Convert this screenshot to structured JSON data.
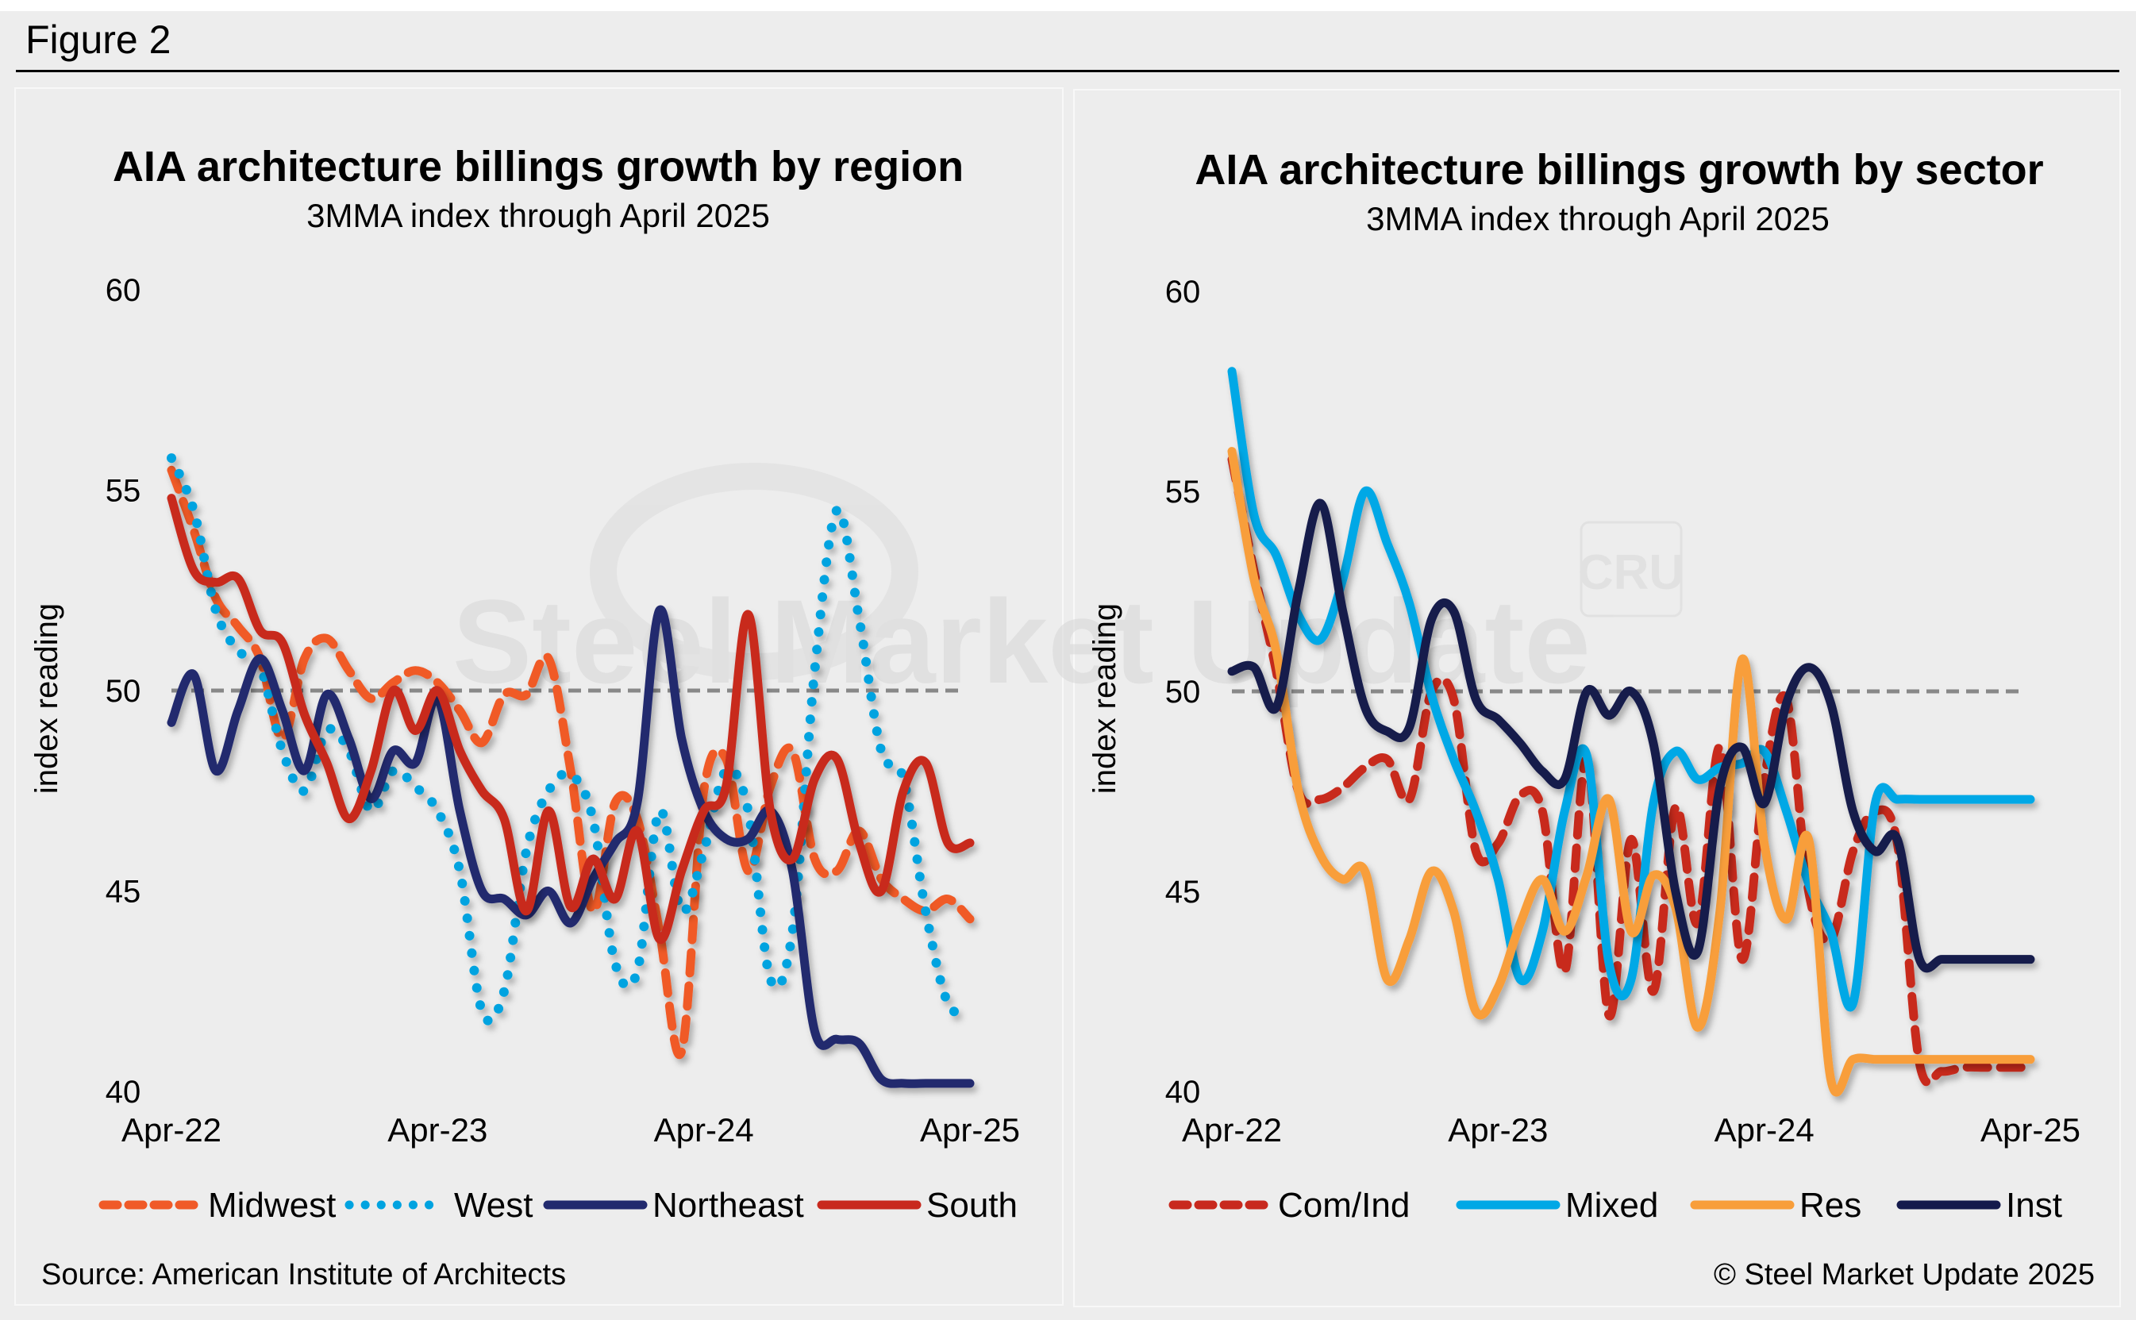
{
  "figure": {
    "title": "Figure 2",
    "source": "Source: American Institute of Architects",
    "copyright": "© Steel Market Update 2025",
    "watermark": "Steel Market Update",
    "watermark_logo": "CRU"
  },
  "colors": {
    "background": "#ededed",
    "reference_line": "#888888",
    "midwest": "#f05a28",
    "west": "#00a3e0",
    "northeast": "#222a6e",
    "south": "#c8291e",
    "com_ind": "#c8291e",
    "mixed": "#00a8e6",
    "res": "#f89e3a",
    "inst": "#141a4c"
  },
  "chart_data": [
    {
      "type": "line",
      "title": "AIA architecture billings growth by region",
      "subtitle": "3MMA index through April 2025",
      "xlabel": "",
      "ylabel": "index reading",
      "ylim": [
        40,
        60
      ],
      "yticks": [
        "60",
        "55",
        "50",
        "45",
        "40"
      ],
      "xtick_labels": [
        "Apr-22",
        "Apr-23",
        "Apr-24",
        "Apr-25"
      ],
      "reference_line": 50,
      "grid": false,
      "legend_position": "bottom",
      "x": [
        "Apr-22",
        "May-22",
        "Jun-22",
        "Jul-22",
        "Aug-22",
        "Sep-22",
        "Oct-22",
        "Nov-22",
        "Dec-22",
        "Jan-23",
        "Feb-23",
        "Mar-23",
        "Apr-23",
        "May-23",
        "Jun-23",
        "Jul-23",
        "Aug-23",
        "Sep-23",
        "Oct-23",
        "Nov-23",
        "Dec-23",
        "Jan-24",
        "Feb-24",
        "Mar-24",
        "Apr-24",
        "May-24",
        "Jun-24",
        "Jul-24",
        "Aug-24",
        "Sep-24",
        "Oct-24",
        "Nov-24",
        "Dec-24",
        "Jan-25",
        "Feb-25",
        "Mar-25",
        "Apr-25"
      ],
      "series": [
        {
          "name": "Midwest",
          "style": "dashed",
          "color_key": "midwest",
          "values": [
            55.5,
            54.0,
            52.3,
            51.6,
            50.8,
            48.8,
            50.8,
            51.3,
            50.5,
            49.8,
            50.2,
            50.5,
            50.2,
            49.5,
            48.7,
            49.9,
            49.9,
            50.8,
            48.0,
            44.5,
            47.2,
            46.8,
            44.0,
            41.0,
            47.5,
            48.3,
            45.5,
            47.6,
            48.5,
            45.8,
            45.5,
            46.5,
            45.3,
            44.8,
            44.5,
            44.8,
            44.3
          ]
        },
        {
          "name": "West",
          "style": "dotted",
          "color_key": "west",
          "values": [
            55.8,
            54.5,
            52.0,
            51.0,
            50.6,
            48.5,
            47.5,
            49.0,
            48.5,
            47.0,
            48.0,
            47.6,
            47.0,
            45.5,
            42.0,
            42.5,
            46.0,
            47.5,
            47.9,
            46.8,
            43.2,
            43.0,
            47.0,
            44.5,
            46.0,
            48.0,
            47.0,
            42.8,
            44.0,
            50.5,
            54.5,
            51.8,
            48.5,
            47.8,
            44.5,
            42.2,
            42.0
          ]
        },
        {
          "name": "Northeast",
          "style": "solid",
          "color_key": "northeast",
          "values": [
            49.2,
            50.4,
            48.0,
            49.5,
            50.8,
            49.5,
            48.0,
            49.9,
            48.8,
            47.3,
            48.5,
            48.2,
            49.8,
            47.0,
            45.0,
            44.8,
            44.4,
            45.0,
            44.2,
            45.3,
            46.2,
            47.2,
            52.0,
            48.8,
            47.0,
            46.3,
            46.3,
            47.0,
            45.5,
            41.5,
            41.3,
            41.2,
            40.3,
            40.2,
            40.2,
            40.2,
            40.2
          ]
        },
        {
          "name": "South",
          "style": "solid",
          "color_key": "south",
          "values": [
            54.8,
            53.0,
            52.7,
            52.8,
            51.5,
            51.2,
            49.4,
            48.2,
            46.8,
            48.0,
            50.0,
            49.0,
            50.0,
            48.5,
            47.5,
            46.8,
            44.5,
            47.0,
            44.6,
            45.8,
            44.8,
            46.5,
            43.8,
            45.5,
            47.0,
            47.6,
            51.9,
            47.0,
            45.8,
            47.8,
            48.3,
            46.2,
            45.0,
            47.5,
            48.2,
            46.2,
            46.2
          ]
        }
      ]
    },
    {
      "type": "line",
      "title": "AIA architecture billings growth by sector",
      "subtitle": "3MMA index through April 2025",
      "xlabel": "",
      "ylabel": "index reading",
      "ylim": [
        40,
        60
      ],
      "yticks": [
        "60",
        "55",
        "50",
        "45",
        "40"
      ],
      "xtick_labels": [
        "Apr-22",
        "Apr-23",
        "Apr-24",
        "Apr-25"
      ],
      "reference_line": 50,
      "grid": false,
      "legend_position": "bottom",
      "x": [
        "Apr-22",
        "May-22",
        "Jun-22",
        "Jul-22",
        "Aug-22",
        "Sep-22",
        "Oct-22",
        "Nov-22",
        "Dec-22",
        "Jan-23",
        "Feb-23",
        "Mar-23",
        "Apr-23",
        "May-23",
        "Jun-23",
        "Jul-23",
        "Aug-23",
        "Sep-23",
        "Oct-23",
        "Nov-23",
        "Dec-23",
        "Jan-24",
        "Feb-24",
        "Mar-24",
        "Apr-24",
        "May-24",
        "Jun-24",
        "Jul-24",
        "Aug-24",
        "Sep-24",
        "Oct-24",
        "Nov-24",
        "Dec-24",
        "Jan-25",
        "Feb-25",
        "Mar-25",
        "Apr-25"
      ],
      "series": [
        {
          "name": "Com/Ind",
          "style": "dashed",
          "color_key": "com_ind",
          "values": [
            55.8,
            53.0,
            50.5,
            47.5,
            47.3,
            47.6,
            48.1,
            48.3,
            47.3,
            50.0,
            49.8,
            46.0,
            46.2,
            47.4,
            47.0,
            43.0,
            48.3,
            41.9,
            46.3,
            42.5,
            47.1,
            44.2,
            48.6,
            43.3,
            47.8,
            49.8,
            45.0,
            43.8,
            46.0,
            47.0,
            46.2,
            40.7,
            40.5,
            40.6,
            40.6,
            40.6,
            40.6
          ]
        },
        {
          "name": "Mixed",
          "style": "solid",
          "color_key": "mixed",
          "values": [
            58.0,
            54.4,
            53.4,
            51.9,
            51.3,
            52.8,
            55.0,
            53.7,
            52.2,
            49.9,
            48.3,
            47.0,
            45.3,
            42.8,
            44.0,
            47.0,
            48.4,
            43.2,
            42.8,
            47.2,
            48.5,
            47.8,
            48.1,
            48.2,
            48.5,
            47.0,
            45.2,
            44.0,
            42.2,
            47.2,
            47.3,
            47.3,
            47.3,
            47.3,
            47.3,
            47.3,
            47.3
          ]
        },
        {
          "name": "Res",
          "style": "solid",
          "color_key": "res",
          "values": [
            56.0,
            52.8,
            51.0,
            47.5,
            45.9,
            45.3,
            45.5,
            42.8,
            43.8,
            45.5,
            44.5,
            42.0,
            42.6,
            44.2,
            45.3,
            44.0,
            45.4,
            47.3,
            44.0,
            45.4,
            44.6,
            41.6,
            44.5,
            50.8,
            46.2,
            44.3,
            46.3,
            40.3,
            40.8,
            40.8,
            40.8,
            40.8,
            40.8,
            40.8,
            40.8,
            40.8,
            40.8
          ]
        },
        {
          "name": "Inst",
          "style": "solid",
          "color_key": "inst",
          "values": [
            50.5,
            50.6,
            49.6,
            52.5,
            54.7,
            52.0,
            49.6,
            49.0,
            49.1,
            51.8,
            52.0,
            49.8,
            49.3,
            48.7,
            48.0,
            47.8,
            50.0,
            49.4,
            50.0,
            48.7,
            45.0,
            43.5,
            47.6,
            48.6,
            47.2,
            49.7,
            50.6,
            49.7,
            47.0,
            46.0,
            46.3,
            43.3,
            43.3,
            43.3,
            43.3,
            43.3,
            43.3
          ]
        }
      ]
    }
  ]
}
